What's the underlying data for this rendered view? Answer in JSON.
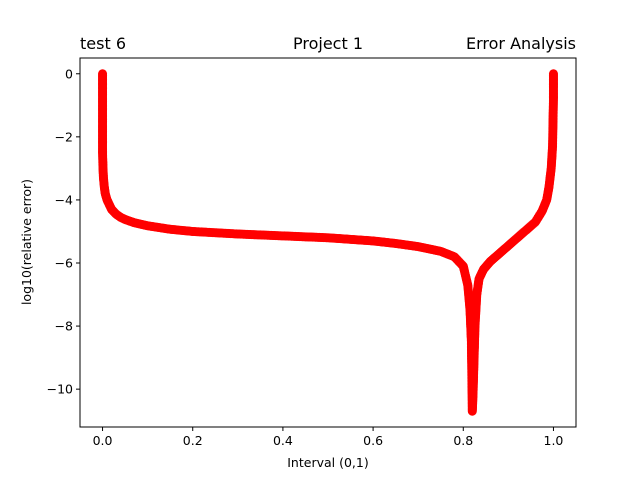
{
  "chart_data": {
    "type": "scatter",
    "title_left": "test 6",
    "title_center": "Project 1",
    "title_right": "Error Analysis",
    "xlabel": "Interval (0,1)",
    "ylabel": "log10(relative error)",
    "xlim": [
      -0.05,
      1.05
    ],
    "ylim": [
      -11.2,
      0.5
    ],
    "xticks": [
      {
        "value": 0.0,
        "label": "0.0"
      },
      {
        "value": 0.2,
        "label": "0.2"
      },
      {
        "value": 0.4,
        "label": "0.4"
      },
      {
        "value": 0.6,
        "label": "0.6"
      },
      {
        "value": 0.8,
        "label": "0.8"
      },
      {
        "value": 1.0,
        "label": "1.0"
      }
    ],
    "yticks": [
      {
        "value": 0,
        "label": "0"
      },
      {
        "value": -2,
        "label": "−2"
      },
      {
        "value": -4,
        "label": "−4"
      },
      {
        "value": -6,
        "label": "−6"
      },
      {
        "value": -8,
        "label": "−8"
      },
      {
        "value": -10,
        "label": "−10"
      }
    ],
    "grid": false,
    "marker_color": "#ff0000",
    "series": [
      {
        "points": [
          [
            0.0,
            0.0
          ],
          [
            0.0,
            -0.3
          ],
          [
            0.0,
            -0.6
          ],
          [
            0.0,
            -1.0
          ],
          [
            0.0,
            -1.5
          ],
          [
            0.0,
            -2.0
          ],
          [
            0.0,
            -2.5
          ],
          [
            0.001,
            -3.0
          ],
          [
            0.002,
            -3.3
          ],
          [
            0.004,
            -3.6
          ],
          [
            0.006,
            -3.8
          ],
          [
            0.01,
            -4.0
          ],
          [
            0.015,
            -4.15
          ],
          [
            0.02,
            -4.3
          ],
          [
            0.03,
            -4.45
          ],
          [
            0.04,
            -4.55
          ],
          [
            0.05,
            -4.62
          ],
          [
            0.07,
            -4.72
          ],
          [
            0.1,
            -4.82
          ],
          [
            0.15,
            -4.93
          ],
          [
            0.2,
            -5.0
          ],
          [
            0.25,
            -5.04
          ],
          [
            0.3,
            -5.08
          ],
          [
            0.35,
            -5.11
          ],
          [
            0.4,
            -5.14
          ],
          [
            0.45,
            -5.17
          ],
          [
            0.5,
            -5.2
          ],
          [
            0.55,
            -5.25
          ],
          [
            0.6,
            -5.3
          ],
          [
            0.65,
            -5.38
          ],
          [
            0.7,
            -5.48
          ],
          [
            0.75,
            -5.63
          ],
          [
            0.78,
            -5.8
          ],
          [
            0.8,
            -6.1
          ],
          [
            0.81,
            -6.7
          ],
          [
            0.815,
            -7.5
          ],
          [
            0.818,
            -8.5
          ],
          [
            0.82,
            -10.7
          ],
          [
            0.821,
            -10.4
          ],
          [
            0.822,
            -10.0
          ],
          [
            0.824,
            -9.0
          ],
          [
            0.826,
            -8.0
          ],
          [
            0.83,
            -7.0
          ],
          [
            0.835,
            -6.5
          ],
          [
            0.845,
            -6.2
          ],
          [
            0.86,
            -5.95
          ],
          [
            0.88,
            -5.7
          ],
          [
            0.9,
            -5.45
          ],
          [
            0.92,
            -5.2
          ],
          [
            0.94,
            -4.95
          ],
          [
            0.96,
            -4.7
          ],
          [
            0.975,
            -4.35
          ],
          [
            0.985,
            -4.0
          ],
          [
            0.99,
            -3.6
          ],
          [
            0.995,
            -3.0
          ],
          [
            0.998,
            -2.3
          ],
          [
            0.999,
            -1.5
          ],
          [
            1.0,
            -0.8
          ],
          [
            1.0,
            -0.3
          ],
          [
            1.0,
            0.0
          ]
        ]
      }
    ]
  }
}
